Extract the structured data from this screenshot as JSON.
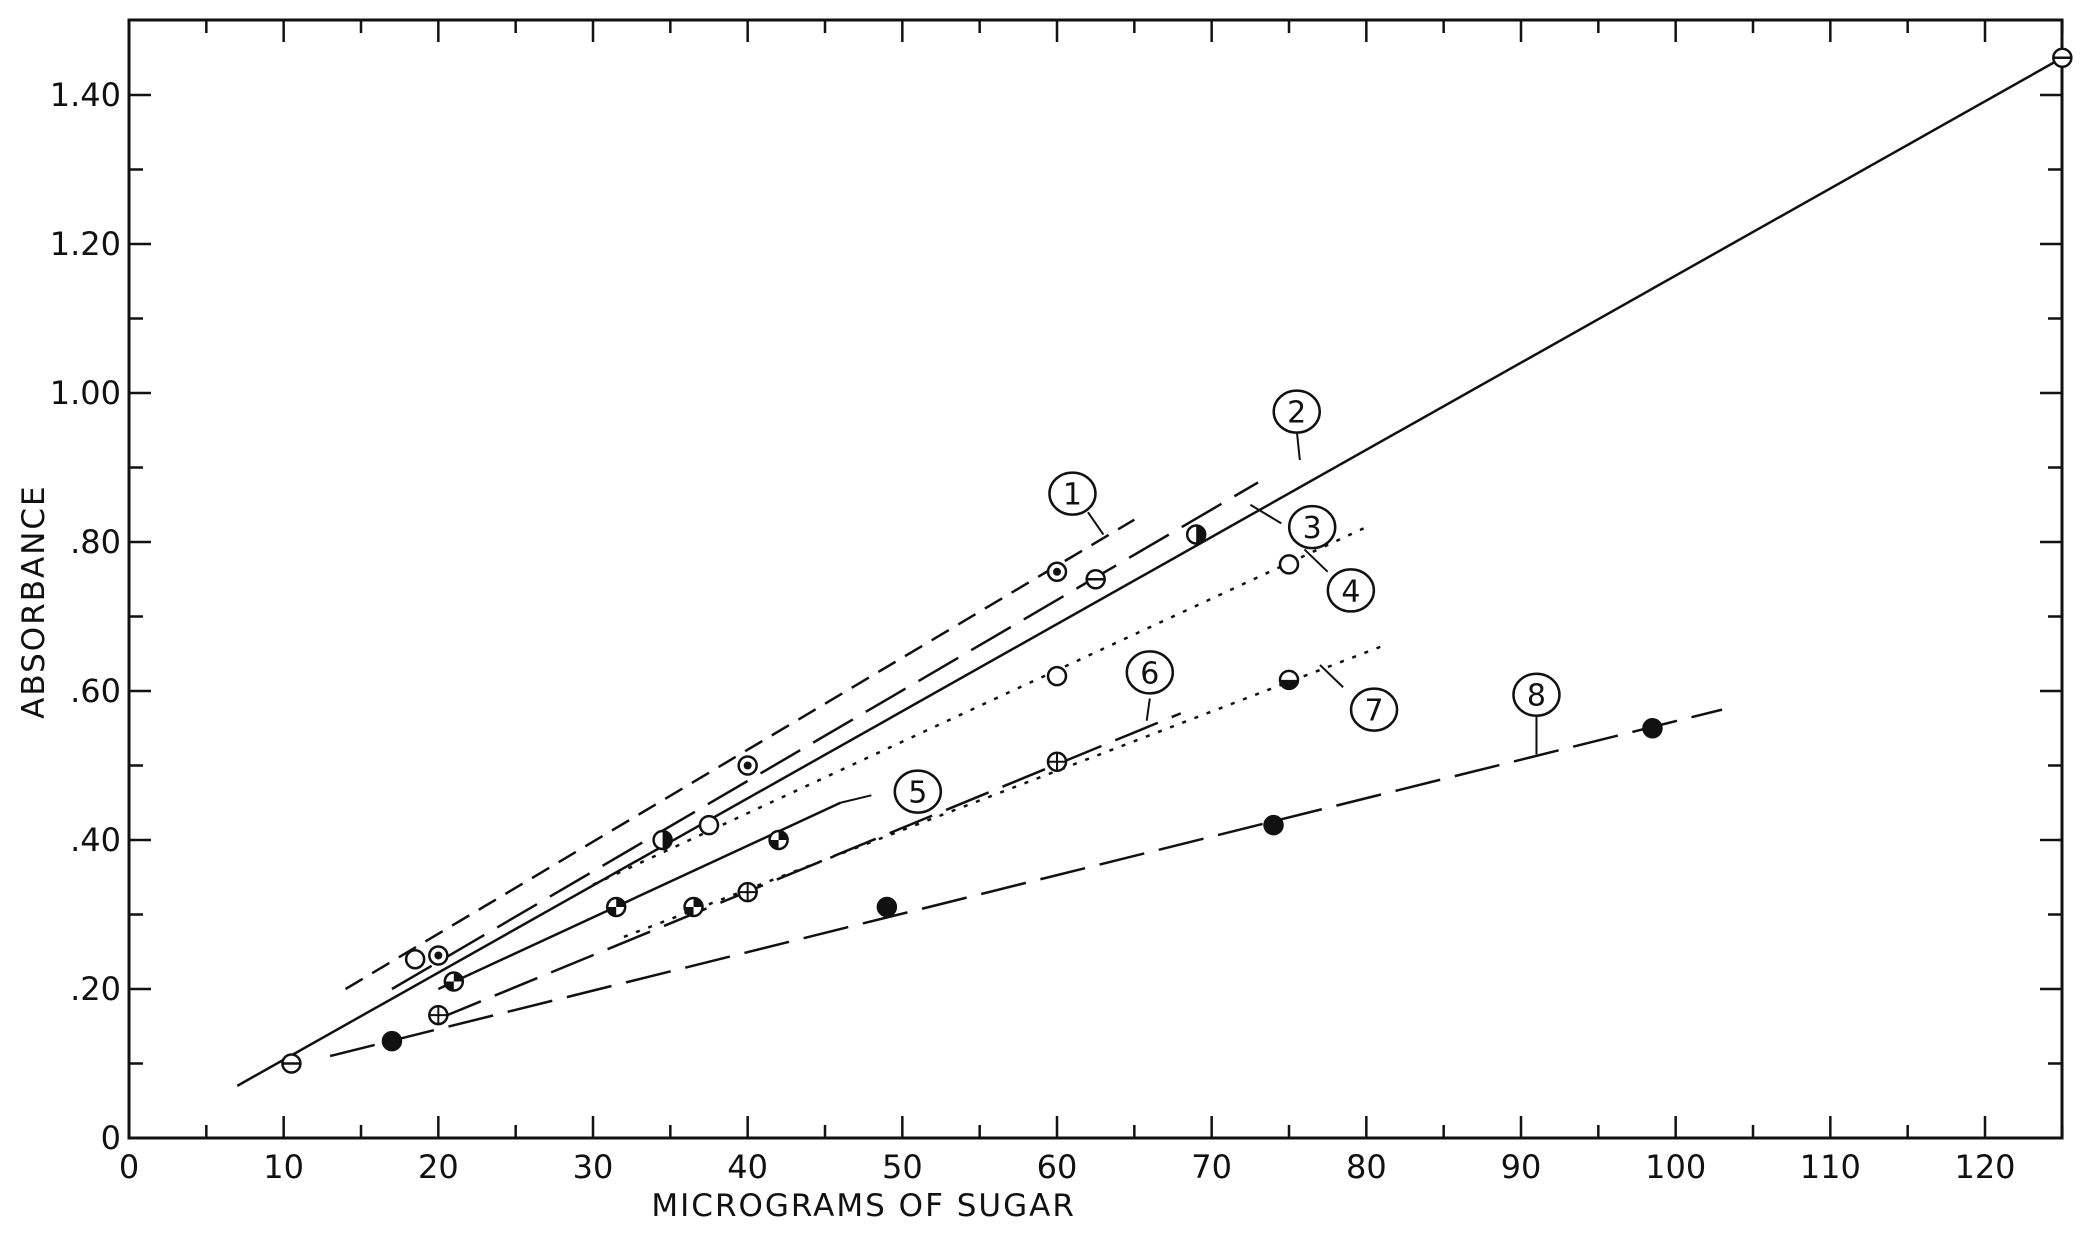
{
  "chart_data": {
    "type": "scatter",
    "title": "",
    "xlabel": "MICROGRAMS OF SUGAR",
    "ylabel": "ABSORBANCE",
    "xlim": [
      0,
      125
    ],
    "ylim": [
      0,
      1.5
    ],
    "grid": false,
    "x_ticks": [
      0,
      10,
      20,
      30,
      40,
      50,
      60,
      70,
      80,
      90,
      100,
      110,
      120
    ],
    "x_tick_labels": [
      "0",
      "10",
      "20",
      "30",
      "40",
      "50",
      "60",
      "70",
      "80",
      "90",
      "100",
      "110",
      "120"
    ],
    "y_ticks": [
      0,
      0.2,
      0.4,
      0.6,
      0.8,
      1.0,
      1.2,
      1.4
    ],
    "y_tick_labels": [
      "0",
      ".20",
      ".40",
      ".60",
      ".80",
      "1.00",
      "1.20",
      "1.40"
    ],
    "series": [
      {
        "label": "1",
        "line_style": "dashed",
        "marker": "dotted-circle",
        "line": [
          [
            14,
            0.2
          ],
          [
            65,
            0.83
          ]
        ],
        "points": [
          [
            20,
            0.245
          ],
          [
            40,
            0.5
          ],
          [
            60,
            0.76
          ]
        ],
        "callout_at": [
          61,
          0.865
        ],
        "leader": [
          [
            62,
            0.84
          ],
          [
            63,
            0.81
          ]
        ]
      },
      {
        "label": "2",
        "line_style": "solid",
        "marker": "barred-circle",
        "line": [
          [
            7,
            0.07
          ],
          [
            125,
            1.45
          ]
        ],
        "points": [
          [
            10.5,
            0.1
          ],
          [
            62.5,
            0.75
          ],
          [
            125,
            1.45
          ]
        ],
        "callout_at": [
          75.5,
          0.975
        ],
        "leader": [
          [
            75.5,
            0.95
          ],
          [
            75.7,
            0.91
          ]
        ]
      },
      {
        "label": "3",
        "line_style": "long-dash",
        "marker": "half-filled-circle",
        "line": [
          [
            17,
            0.2
          ],
          [
            73,
            0.88
          ]
        ],
        "points": [
          [
            34.5,
            0.4
          ],
          [
            69,
            0.81
          ]
        ],
        "callout_at": [
          76.5,
          0.82
        ],
        "leader": [
          [
            74.5,
            0.825
          ],
          [
            72.5,
            0.85
          ]
        ]
      },
      {
        "label": "4",
        "line_style": "dotted",
        "marker": "open-circle",
        "line": [
          [
            30,
            0.34
          ],
          [
            80,
            0.82
          ]
        ],
        "points": [
          [
            18.5,
            0.24
          ],
          [
            37.5,
            0.42
          ],
          [
            60,
            0.62
          ],
          [
            75,
            0.77
          ]
        ],
        "callout_at": [
          79,
          0.735
        ],
        "leader": [
          [
            77.5,
            0.76
          ],
          [
            76,
            0.79
          ]
        ]
      },
      {
        "label": "5",
        "line_style": "solid",
        "marker": "quarter-filled-circle",
        "line": [
          [
            20,
            0.2
          ],
          [
            46,
            0.45
          ]
        ],
        "points": [
          [
            21,
            0.21
          ],
          [
            31.5,
            0.31
          ],
          [
            36.5,
            0.31
          ],
          [
            42,
            0.4
          ]
        ],
        "callout_at": [
          51,
          0.465
        ],
        "leader": [
          [
            48,
            0.46
          ],
          [
            46,
            0.45
          ]
        ]
      },
      {
        "label": "6",
        "line_style": "long-dash",
        "marker": "crossed-circle",
        "line": [
          [
            20,
            0.16
          ],
          [
            68,
            0.57
          ]
        ],
        "points": [
          [
            20,
            0.165
          ],
          [
            40,
            0.33
          ],
          [
            60,
            0.505
          ]
        ],
        "callout_at": [
          66,
          0.625
        ],
        "leader": [
          [
            66,
            0.59
          ],
          [
            65.8,
            0.56
          ]
        ]
      },
      {
        "label": "7",
        "line_style": "dotted",
        "marker": "bottom-filled-circle",
        "line": [
          [
            32,
            0.27
          ],
          [
            81,
            0.66
          ]
        ],
        "points": [
          [
            75,
            0.615
          ]
        ],
        "callout_at": [
          80.5,
          0.575
        ],
        "leader": [
          [
            78.5,
            0.605
          ],
          [
            77,
            0.635
          ]
        ]
      },
      {
        "label": "8",
        "line_style": "long-dash",
        "marker": "filled-circle",
        "line": [
          [
            13,
            0.11
          ],
          [
            103,
            0.575
          ]
        ],
        "points": [
          [
            17,
            0.13
          ],
          [
            49,
            0.31
          ],
          [
            74,
            0.42
          ],
          [
            98.5,
            0.55
          ]
        ],
        "callout_at": [
          91,
          0.595
        ],
        "leader": [
          [
            91,
            0.565
          ],
          [
            91,
            0.515
          ]
        ]
      }
    ]
  }
}
